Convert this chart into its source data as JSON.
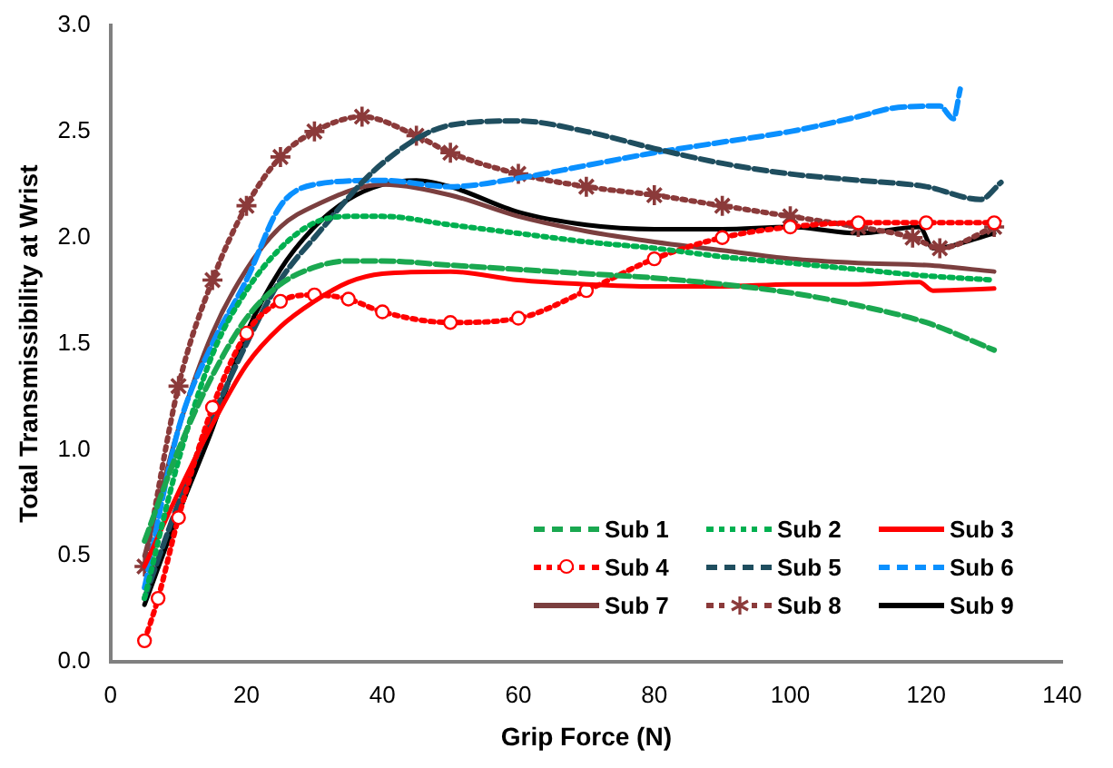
{
  "chart_data": {
    "type": "line",
    "xlabel": "Grip Force (N)",
    "ylabel": "Total Transmissibility at Wrist",
    "xlim": [
      0,
      140
    ],
    "xticks": [
      0,
      20,
      40,
      60,
      80,
      100,
      120,
      140
    ],
    "ylim": [
      0,
      3
    ],
    "yticks": [
      {
        "value": 0,
        "label": "0.0"
      },
      {
        "value": 0.5,
        "label": "0.5"
      },
      {
        "value": 1,
        "label": "1.0"
      },
      {
        "value": 1.5,
        "label": "1.5"
      },
      {
        "value": 2,
        "label": "2.0"
      },
      {
        "value": 2.5,
        "label": "2.5"
      },
      {
        "value": 3,
        "label": "3.0"
      }
    ],
    "grid": false,
    "legend": "bottom right",
    "series": [
      {
        "name": "Sub 1",
        "color": "#1aa850",
        "line_style": "dashed",
        "x": [
          5,
          10,
          15,
          20,
          25,
          30,
          35,
          40,
          50,
          60,
          70,
          80,
          90,
          100,
          110,
          120,
          130
        ],
        "values": [
          0.57,
          1.0,
          1.35,
          1.62,
          1.78,
          1.86,
          1.89,
          1.89,
          1.87,
          1.85,
          1.83,
          1.81,
          1.78,
          1.74,
          1.68,
          1.6,
          1.47
        ]
      },
      {
        "name": "Sub 2",
        "color": "#00b050",
        "line_style": "dotted",
        "x": [
          5,
          10,
          15,
          20,
          25,
          30,
          35,
          40,
          50,
          60,
          70,
          80,
          90,
          100,
          110,
          120,
          130
        ],
        "values": [
          0.3,
          0.95,
          1.45,
          1.75,
          1.95,
          2.07,
          2.1,
          2.1,
          2.06,
          2.02,
          1.98,
          1.95,
          1.91,
          1.88,
          1.85,
          1.82,
          1.8
        ]
      },
      {
        "name": "Sub 3",
        "color": "#ff0000",
        "line_style": "solid",
        "x": [
          5,
          10,
          15,
          20,
          25,
          30,
          35,
          40,
          50,
          60,
          70,
          80,
          90,
          100,
          110,
          119,
          121,
          130
        ],
        "values": [
          0.45,
          0.8,
          1.12,
          1.4,
          1.58,
          1.7,
          1.79,
          1.83,
          1.84,
          1.8,
          1.78,
          1.77,
          1.77,
          1.78,
          1.78,
          1.79,
          1.75,
          1.76
        ]
      },
      {
        "name": "Sub 4",
        "color": "#ff0000",
        "line_style": "dotted",
        "marker": "circle",
        "x": [
          5,
          7,
          10,
          15,
          20,
          25,
          30,
          35,
          40,
          50,
          60,
          70,
          80,
          90,
          100,
          110,
          120,
          130
        ],
        "values": [
          0.1,
          0.3,
          0.68,
          1.2,
          1.55,
          1.7,
          1.73,
          1.71,
          1.65,
          1.6,
          1.62,
          1.75,
          1.9,
          2.0,
          2.05,
          2.07,
          2.07,
          2.07
        ]
      },
      {
        "name": "Sub 5",
        "color": "#1f4e5f",
        "line_style": "dashed",
        "x": [
          5,
          10,
          15,
          20,
          25,
          30,
          40,
          50,
          60,
          70,
          80,
          90,
          100,
          110,
          120,
          128,
          131
        ],
        "values": [
          0.3,
          0.75,
          1.15,
          1.5,
          1.8,
          2.0,
          2.35,
          2.53,
          2.55,
          2.5,
          2.42,
          2.35,
          2.3,
          2.27,
          2.24,
          2.18,
          2.26
        ]
      },
      {
        "name": "Sub 6",
        "color": "#0a90ff",
        "line_style": "dashed",
        "x": [
          5,
          10,
          15,
          20,
          25,
          30,
          40,
          50,
          60,
          70,
          80,
          90,
          100,
          110,
          115,
          122,
          124,
          125
        ],
        "values": [
          0.35,
          1.1,
          1.5,
          1.8,
          2.15,
          2.25,
          2.27,
          2.24,
          2.28,
          2.34,
          2.4,
          2.45,
          2.5,
          2.57,
          2.61,
          2.62,
          2.56,
          2.7
        ]
      },
      {
        "name": "Sub 7",
        "color": "#7b3f3f",
        "line_style": "solid",
        "x": [
          5,
          10,
          15,
          20,
          25,
          30,
          40,
          50,
          60,
          70,
          80,
          90,
          100,
          110,
          120,
          130
        ],
        "values": [
          0.5,
          1.1,
          1.55,
          1.85,
          2.05,
          2.15,
          2.25,
          2.2,
          2.1,
          2.03,
          1.98,
          1.94,
          1.9,
          1.88,
          1.87,
          1.84
        ]
      },
      {
        "name": "Sub 8",
        "color": "#8b3a3a",
        "line_style": "dotted",
        "marker": "cross",
        "x": [
          5,
          10,
          15,
          20,
          25,
          30,
          37,
          45,
          50,
          60,
          70,
          80,
          90,
          100,
          110,
          118,
          122,
          130
        ],
        "values": [
          0.45,
          1.3,
          1.8,
          2.15,
          2.38,
          2.5,
          2.57,
          2.48,
          2.4,
          2.3,
          2.24,
          2.2,
          2.15,
          2.1,
          2.05,
          2.0,
          1.95,
          2.05
        ]
      },
      {
        "name": "Sub 9",
        "color": "#000000",
        "line_style": "solid",
        "x": [
          5,
          10,
          15,
          20,
          25,
          30,
          35,
          40,
          45,
          50,
          60,
          70,
          80,
          90,
          100,
          110,
          119,
          121,
          130
        ],
        "values": [
          0.27,
          0.7,
          1.1,
          1.55,
          1.85,
          2.05,
          2.18,
          2.25,
          2.27,
          2.24,
          2.12,
          2.06,
          2.04,
          2.04,
          2.05,
          2.02,
          2.05,
          1.95,
          2.02
        ]
      }
    ]
  }
}
